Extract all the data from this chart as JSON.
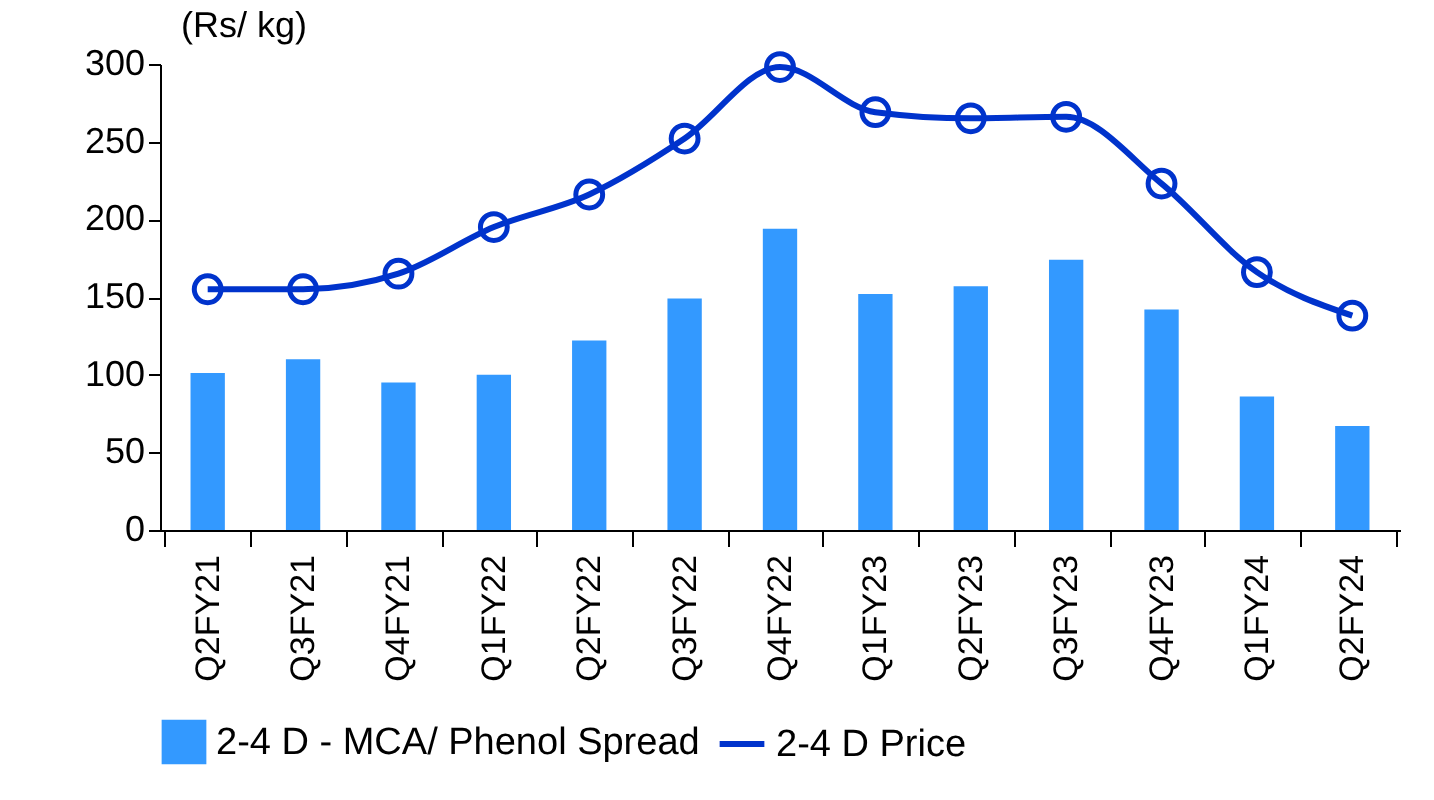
{
  "chart_data": {
    "type": "bar",
    "ylabel": "(Rs/ kg)",
    "categories": [
      "Q2FY21",
      "Q3FY21",
      "Q4FY21",
      "Q1FY22",
      "Q2FY22",
      "Q3FY22",
      "Q4FY22",
      "Q1FY23",
      "Q2FY23",
      "Q3FY23",
      "Q4FY23",
      "Q1FY24",
      "Q2FY24"
    ],
    "series": [
      {
        "name": "2-4 D - MCA/ Phenol Spread",
        "color": "#3399ff",
        "values": [
          101,
          110,
          95,
          100,
          122,
          149,
          194,
          152,
          157,
          174,
          142,
          86,
          67
        ]
      },
      {
        "name": "2-4 D Price",
        "type": "line",
        "color": "#0033cc",
        "marker": "circle",
        "values": [
          155,
          155,
          165,
          195,
          216,
          252,
          298,
          269,
          265,
          266,
          223,
          166,
          138
        ]
      }
    ],
    "ylim": [
      0,
      300
    ],
    "yticks": [
      0,
      50,
      100,
      150,
      200,
      250,
      300
    ],
    "grid": false,
    "legend": "bottom"
  }
}
